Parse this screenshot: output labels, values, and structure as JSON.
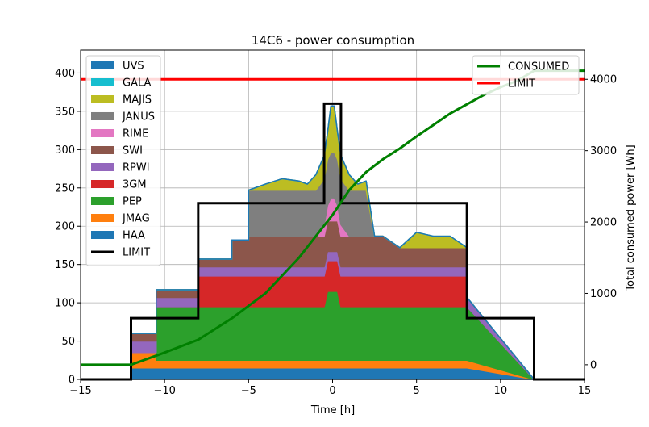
{
  "chart_data": {
    "type": "area",
    "title": "14C6 - power consumption",
    "xlabel": "Time [h]",
    "ylabel_right": "Total consumed power [Wh]",
    "xlim": [
      -15,
      15
    ],
    "ylim": [
      0,
      430
    ],
    "y2lim": [
      -205,
      4410
    ],
    "xticks": [
      -15,
      -10,
      -5,
      0,
      5,
      10,
      15
    ],
    "yticks": [
      0,
      50,
      100,
      150,
      200,
      250,
      300,
      350,
      400
    ],
    "y2ticks": [
      0,
      1000,
      2000,
      3000,
      4000
    ],
    "grid": true,
    "legend_left_placement": "top-left",
    "legend_right_placement": "top-right",
    "x": [
      -15,
      -12,
      -12,
      -10.5,
      -10.5,
      -9,
      -9,
      -8,
      -8,
      -6,
      -6,
      -5,
      -5,
      -4,
      -3,
      -2,
      -1.5,
      -1,
      -0.5,
      -0.3,
      -0.1,
      0.1,
      0.3,
      0.5,
      1,
      1.5,
      2,
      2.5,
      3,
      4,
      5,
      6,
      7,
      8,
      8,
      12,
      12,
      15
    ],
    "series": [
      {
        "name": "UVS",
        "color": "#1f77b4",
        "values": [
          0,
          0,
          0,
          0,
          0,
          0,
          0,
          0,
          0,
          0,
          0,
          0,
          0,
          0,
          0,
          0,
          0,
          0,
          0,
          0,
          0,
          0,
          0,
          0,
          0,
          0,
          0,
          0,
          0,
          0,
          0,
          0,
          0,
          0,
          0,
          0,
          0,
          0
        ]
      },
      {
        "name": "GALA",
        "color": "#17becf",
        "values": [
          0,
          0,
          0,
          0,
          0,
          0,
          0,
          0,
          0,
          0,
          0,
          0,
          0,
          0,
          0,
          0,
          0,
          0,
          0,
          0,
          0,
          0,
          0,
          0,
          0,
          0,
          0,
          0,
          0,
          0,
          0,
          0,
          0,
          0,
          0,
          0,
          0,
          0
        ]
      },
      {
        "name": "MAJIS",
        "color": "#bcbd22",
        "values": [
          0,
          0,
          0,
          0,
          0,
          0,
          0,
          0,
          0,
          0,
          0,
          0,
          0,
          8,
          15,
          12,
          8,
          20,
          30,
          35,
          60,
          60,
          35,
          30,
          20,
          8,
          12,
          0,
          0,
          0,
          20,
          15,
          15,
          0,
          0,
          0,
          0,
          0
        ]
      },
      {
        "name": "JANUS",
        "color": "#7f7f7f",
        "values": [
          0,
          0,
          0,
          0,
          0,
          0,
          0,
          0,
          0,
          0,
          0,
          0,
          60,
          60,
          60,
          60,
          60,
          60,
          60,
          60,
          60,
          60,
          60,
          60,
          60,
          60,
          60,
          0,
          0,
          0,
          0,
          0,
          0,
          0,
          0,
          0,
          0,
          0
        ]
      },
      {
        "name": "RIME",
        "color": "#e377c2",
        "values": [
          0,
          0,
          0,
          0,
          0,
          0,
          0,
          0,
          0,
          0,
          0,
          0,
          0,
          0,
          0,
          0,
          0,
          0,
          15,
          20,
          30,
          30,
          20,
          15,
          0,
          0,
          0,
          0,
          0,
          0,
          0,
          0,
          0,
          0,
          0,
          0,
          0,
          0
        ]
      },
      {
        "name": "SWI",
        "color": "#8c564b",
        "values": [
          0,
          0,
          10,
          10,
          10,
          10,
          10,
          10,
          10,
          10,
          35,
          35,
          40,
          40,
          40,
          40,
          40,
          40,
          40,
          40,
          40,
          40,
          40,
          40,
          40,
          40,
          40,
          40,
          40,
          25,
          25,
          25,
          25,
          25,
          0,
          0,
          0,
          0
        ]
      },
      {
        "name": "RPWI",
        "color": "#9467bd",
        "values": [
          0,
          0,
          15,
          15,
          12,
          12,
          12,
          12,
          12,
          12,
          12,
          12,
          12,
          12,
          12,
          12,
          12,
          12,
          12,
          12,
          12,
          12,
          12,
          12,
          12,
          12,
          12,
          12,
          12,
          12,
          12,
          12,
          12,
          12,
          12,
          0,
          0,
          0
        ]
      },
      {
        "name": "3GM",
        "color": "#d62728",
        "values": [
          0,
          0,
          0,
          0,
          0,
          0,
          0,
          0,
          40,
          40,
          40,
          40,
          40,
          40,
          40,
          40,
          40,
          40,
          40,
          40,
          40,
          40,
          40,
          40,
          40,
          40,
          40,
          40,
          40,
          40,
          40,
          40,
          40,
          40,
          0,
          0,
          0,
          0
        ]
      },
      {
        "name": "PEP",
        "color": "#2ca02c",
        "values": [
          0,
          0,
          0,
          0,
          70,
          70,
          70,
          70,
          70,
          70,
          70,
          70,
          70,
          70,
          70,
          70,
          70,
          70,
          70,
          90,
          90,
          90,
          90,
          70,
          70,
          70,
          70,
          70,
          70,
          70,
          70,
          70,
          70,
          70,
          70,
          0,
          0,
          0
        ]
      },
      {
        "name": "JMAG",
        "color": "#ff7f0e",
        "values": [
          0,
          0,
          20,
          20,
          10,
          10,
          10,
          10,
          10,
          10,
          10,
          10,
          10,
          10,
          10,
          10,
          10,
          10,
          10,
          10,
          10,
          10,
          10,
          10,
          10,
          10,
          10,
          10,
          10,
          10,
          10,
          10,
          10,
          10,
          10,
          0,
          0,
          0
        ]
      },
      {
        "name": "HAA",
        "color": "#1f77b4",
        "values": [
          0,
          0,
          15,
          15,
          15,
          15,
          15,
          15,
          15,
          15,
          15,
          15,
          15,
          15,
          15,
          15,
          15,
          15,
          15,
          15,
          15,
          15,
          15,
          15,
          15,
          15,
          15,
          15,
          15,
          15,
          15,
          15,
          15,
          15,
          15,
          0,
          0,
          0
        ]
      }
    ],
    "limit_step": {
      "name": "LIMIT",
      "color": "#000000",
      "x": [
        -15,
        -12,
        -12,
        -8,
        -8,
        -0.5,
        -0.5,
        0.5,
        0.5,
        8,
        8,
        12,
        12,
        15
      ],
      "y": [
        0,
        0,
        80,
        80,
        230,
        230,
        360,
        360,
        230,
        230,
        80,
        80,
        0,
        0
      ]
    },
    "limit_line": {
      "name": "LIMIT",
      "color": "#ff0000",
      "y2": 4000
    },
    "consumed": {
      "name": "CONSUMED",
      "color": "#008000",
      "x": [
        -15,
        -12,
        -10,
        -8,
        -6,
        -4,
        -2,
        0,
        1,
        2,
        3,
        4,
        5,
        6,
        7,
        8,
        9,
        10,
        11,
        12,
        15
      ],
      "y2": [
        0,
        0,
        170,
        350,
        650,
        1000,
        1500,
        2100,
        2450,
        2700,
        2880,
        3030,
        3200,
        3360,
        3520,
        3650,
        3780,
        3890,
        3980,
        4120,
        4120
      ]
    }
  }
}
